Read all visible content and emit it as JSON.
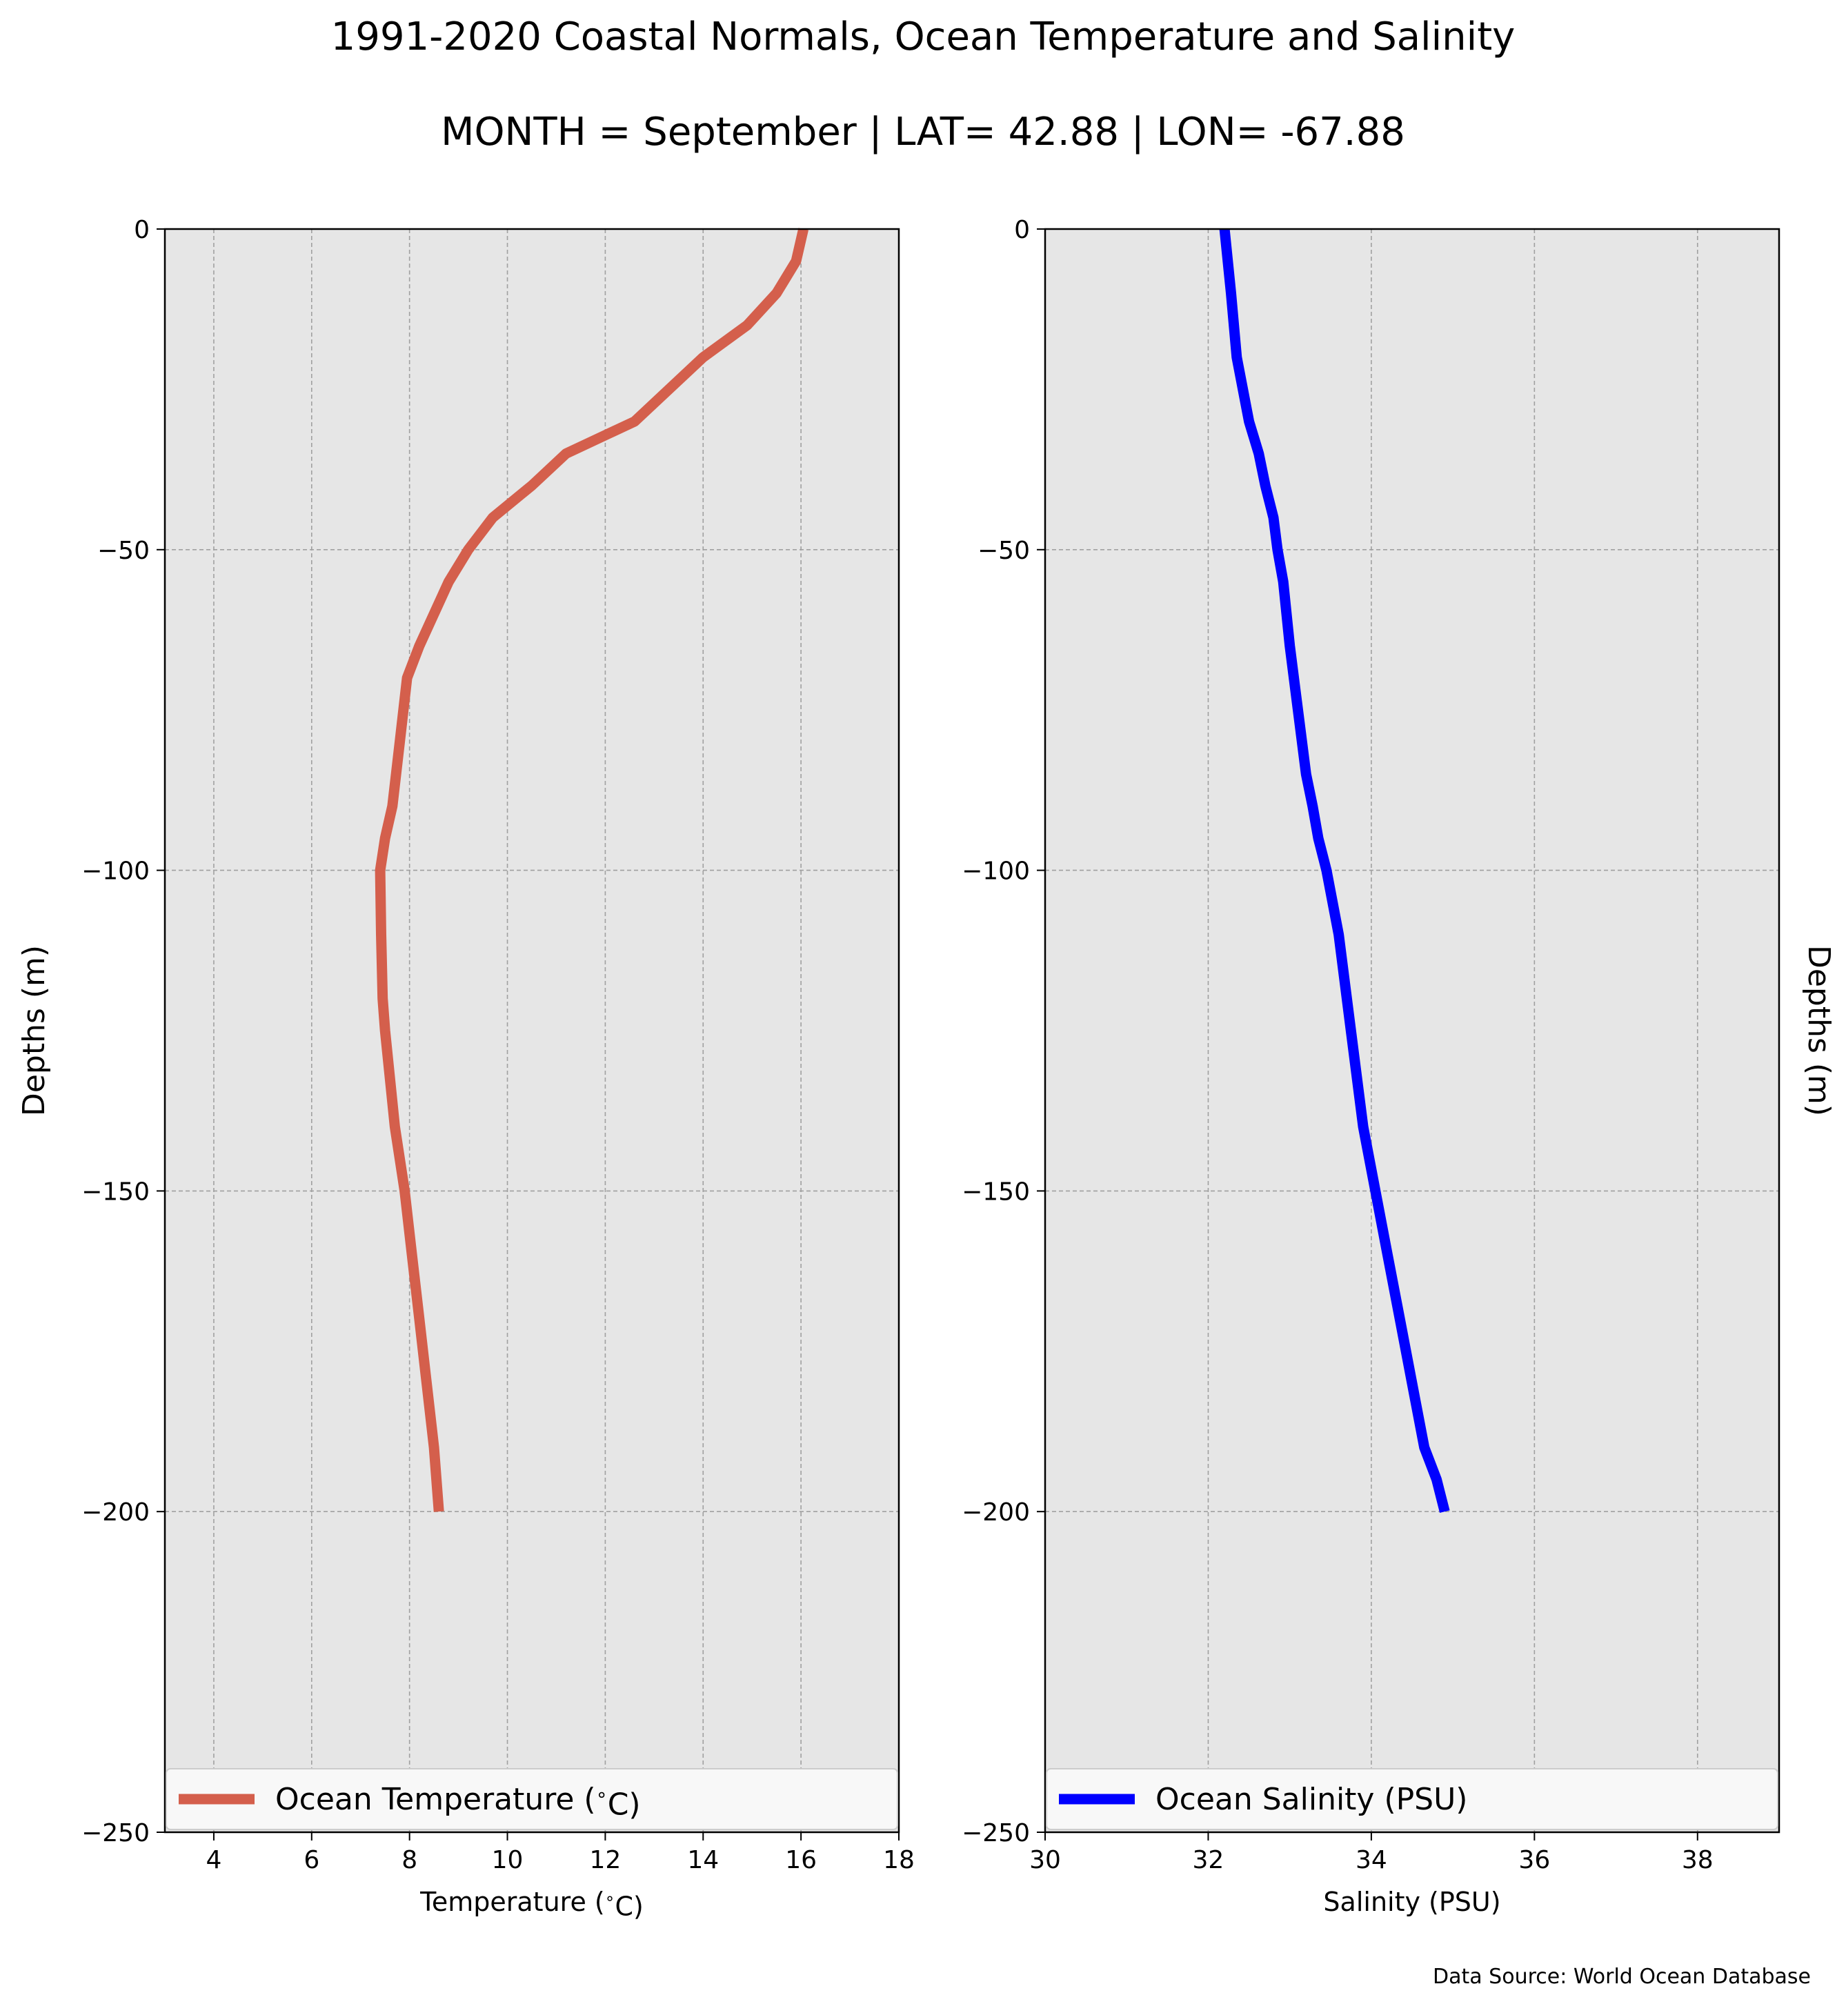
{
  "title": "1991-2020 Coastal Normals, Ocean Temperature and Salinity",
  "subtitle": "MONTH = September | LAT= 42.88 | LON= -67.88",
  "source": "Data Source: World Ocean Database",
  "colors": {
    "background": "#e6e6e6",
    "grid": "#a0a0a0",
    "temperature": "#d45f4c",
    "salinity": "#0000ff"
  },
  "chart_data": [
    {
      "type": "line",
      "xlabel": "Temperature ($^\\circ$C)",
      "ylabel": "Depths (m)",
      "xlim": [
        3,
        18
      ],
      "ylim": [
        -250,
        0
      ],
      "xticks": [
        4,
        6,
        8,
        10,
        12,
        14,
        16,
        18
      ],
      "yticks": [
        0,
        -50,
        -100,
        -150,
        -200,
        -250
      ],
      "grid": true,
      "legend_position": "bottom",
      "series": [
        {
          "name": "Ocean Temperature ($^\\circ$C)",
          "color": "#d45f4c",
          "x": [
            16.05,
            15.9,
            15.5,
            14.9,
            14.0,
            12.6,
            11.2,
            10.5,
            9.7,
            9.2,
            8.8,
            8.2,
            7.95,
            7.8,
            7.65,
            7.5,
            7.4,
            7.42,
            7.45,
            7.5,
            7.7,
            7.9,
            8.05,
            8.2,
            8.35,
            8.5,
            8.6
          ],
          "y": [
            0,
            -5,
            -10,
            -15,
            -20,
            -30,
            -35,
            -40,
            -45,
            -50,
            -55,
            -65,
            -70,
            -80,
            -90,
            -95,
            -100,
            -110,
            -120,
            -125,
            -140,
            -150,
            -160,
            -170,
            -180,
            -190,
            -200
          ]
        }
      ]
    },
    {
      "type": "line",
      "xlabel": "Salinity (PSU)",
      "ylabel": "Depths (m)",
      "xlim": [
        30,
        39
      ],
      "ylim": [
        -250,
        0
      ],
      "xticks": [
        30,
        32,
        34,
        36,
        38
      ],
      "yticks": [
        0,
        -50,
        -100,
        -150,
        -200,
        -250
      ],
      "grid": true,
      "legend_position": "bottom",
      "series": [
        {
          "name": "Ocean Salinity (PSU)",
          "color": "#0000ff",
          "x": [
            32.2,
            32.28,
            32.35,
            32.5,
            32.62,
            32.7,
            32.8,
            32.85,
            32.92,
            33.0,
            33.1,
            33.2,
            33.28,
            33.35,
            33.45,
            33.6,
            33.75,
            33.9,
            34.05,
            34.2,
            34.35,
            34.5,
            34.65,
            34.8,
            34.9
          ],
          "y": [
            0,
            -10,
            -20,
            -30,
            -35,
            -40,
            -45,
            -50,
            -55,
            -65,
            -75,
            -85,
            -90,
            -95,
            -100,
            -110,
            -125,
            -140,
            -150,
            -160,
            -170,
            -180,
            -190,
            -195,
            -200
          ]
        }
      ]
    }
  ]
}
